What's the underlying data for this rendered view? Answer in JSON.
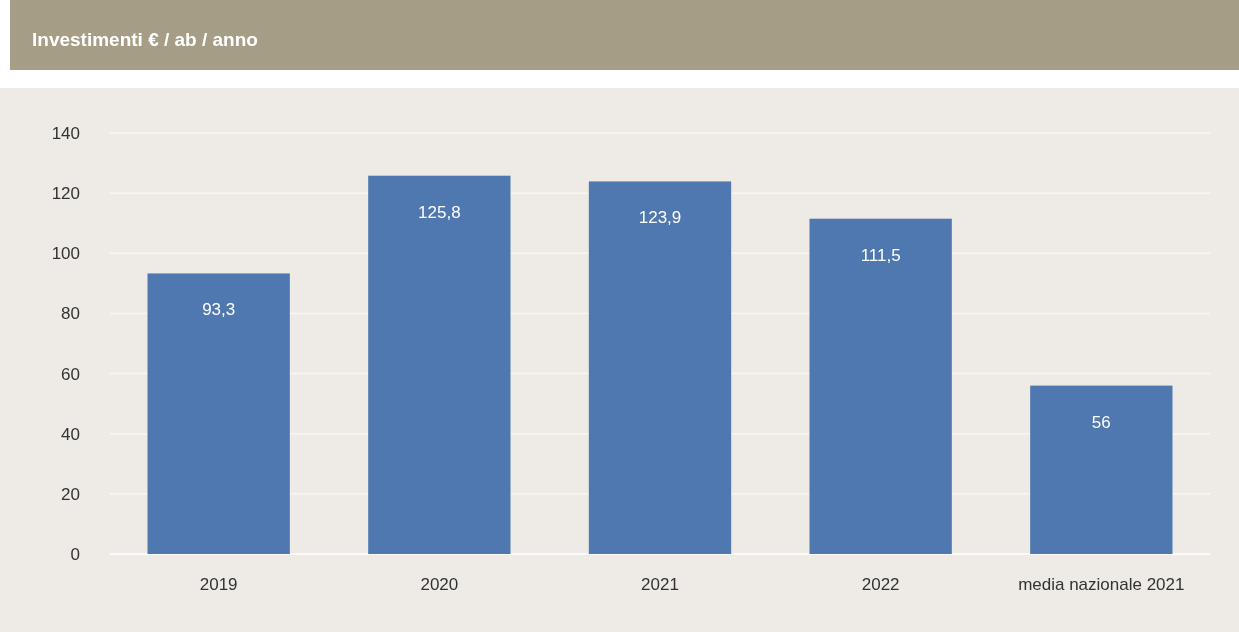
{
  "chart_data": {
    "type": "bar",
    "title": "Investimenti € / ab / anno",
    "categories": [
      "2019",
      "2020",
      "2021",
      "2022",
      "media nazionale 2021"
    ],
    "values": [
      93.3,
      125.8,
      123.9,
      111.5,
      56
    ],
    "value_labels": [
      "93,3",
      "125,8",
      "123,9",
      "111,5",
      "56"
    ],
    "color": "#4f78b0",
    "ylim": [
      0,
      140
    ],
    "yticks": [
      0,
      20,
      40,
      60,
      80,
      100,
      120,
      140
    ],
    "grid": "y"
  }
}
